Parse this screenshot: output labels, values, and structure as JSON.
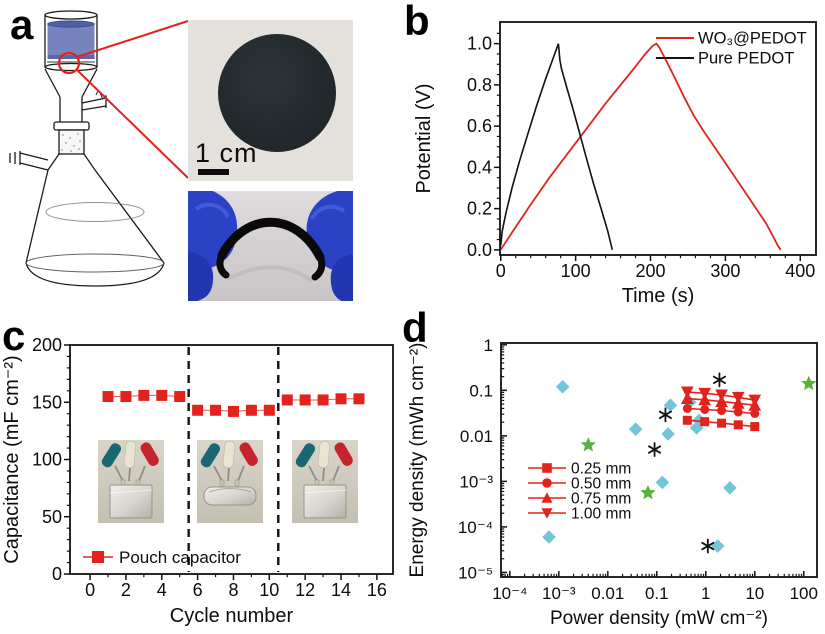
{
  "figure": {
    "background": "#ffffff",
    "panels": {
      "a": {
        "letter": "a"
      },
      "b": {
        "letter": "b"
      },
      "c": {
        "letter": "c"
      },
      "d": {
        "letter": "d"
      }
    }
  },
  "panel_a": {
    "scale_label": "1 cm",
    "drawing": "vacuum-filtration-apparatus",
    "colors": {
      "suspension_liquid": "#7584bd",
      "suspension_liquid_dark": "#505fa5",
      "highlight_red": "#e2231d",
      "glove_blue": "#2b41c6",
      "glove_blue_dark": "#2236b0",
      "film_black": "#23292d"
    }
  },
  "chart_data": [
    {
      "panel": "b",
      "type": "line",
      "xlabel": "Time (s)",
      "ylabel": "Potential (V)",
      "xlim": [
        -1,
        421
      ],
      "ylim": [
        -0.025,
        1.105
      ],
      "xticks": [
        0,
        100,
        200,
        300,
        400
      ],
      "xtick_labels": [
        "0",
        "100",
        "200",
        "300",
        "400"
      ],
      "yticks": [
        0.0,
        0.2,
        0.4,
        0.6,
        0.8,
        1.0
      ],
      "ytick_labels": [
        "0.0",
        "0.2",
        "0.4",
        "0.6",
        "0.8",
        "1.0"
      ],
      "legend": {
        "position": "top-right",
        "entries": [
          {
            "label": "WO₃@PEDOT",
            "color": "#e2231d"
          },
          {
            "label": "Pure PEDOT",
            "color": "#111111"
          }
        ]
      },
      "series": [
        {
          "name": "WO₃@PEDOT",
          "color": "#e2231d",
          "width": 1.8,
          "points": [
            [
              0,
              0.0
            ],
            [
              18,
              0.1
            ],
            [
              40,
              0.22
            ],
            [
              65,
              0.35
            ],
            [
              90,
              0.47
            ],
            [
              115,
              0.59
            ],
            [
              140,
              0.71
            ],
            [
              160,
              0.8
            ],
            [
              178,
              0.88
            ],
            [
              193,
              0.95
            ],
            [
              203,
              0.99
            ],
            [
              208,
              1.0
            ],
            [
              212,
              0.98
            ],
            [
              222,
              0.91
            ],
            [
              233,
              0.83
            ],
            [
              245,
              0.74
            ],
            [
              258,
              0.65
            ],
            [
              272,
              0.57
            ],
            [
              287,
              0.49
            ],
            [
              302,
              0.41
            ],
            [
              317,
              0.33
            ],
            [
              330,
              0.26
            ],
            [
              343,
              0.19
            ],
            [
              354,
              0.13
            ],
            [
              363,
              0.07
            ],
            [
              370,
              0.02
            ],
            [
              374,
              0.0
            ]
          ]
        },
        {
          "name": "Pure PEDOT",
          "color": "#111111",
          "width": 1.6,
          "points": [
            [
              0,
              0.02
            ],
            [
              2,
              0.09
            ],
            [
              7,
              0.18
            ],
            [
              15,
              0.3
            ],
            [
              25,
              0.43
            ],
            [
              36,
              0.56
            ],
            [
              48,
              0.7
            ],
            [
              60,
              0.83
            ],
            [
              70,
              0.93
            ],
            [
              77,
              1.0
            ],
            [
              79,
              0.92
            ],
            [
              81,
              0.88
            ],
            [
              88,
              0.79
            ],
            [
              96,
              0.69
            ],
            [
              105,
              0.57
            ],
            [
              114,
              0.45
            ],
            [
              124,
              0.32
            ],
            [
              134,
              0.2
            ],
            [
              143,
              0.09
            ],
            [
              149,
              0.0
            ]
          ]
        }
      ]
    },
    {
      "panel": "c",
      "type": "scatter-line",
      "xlabel": "Cycle number",
      "ylabel": "Capacitance (mF cm⁻²)",
      "xlim": [
        -1.12,
        16.9
      ],
      "ylim": [
        0,
        200
      ],
      "xticks": [
        0,
        2,
        4,
        6,
        8,
        10,
        12,
        14,
        16
      ],
      "xtick_labels": [
        "0",
        "2",
        "4",
        "6",
        "8",
        "10",
        "12",
        "14",
        "16"
      ],
      "yticks": [
        0,
        50,
        100,
        150,
        200
      ],
      "ytick_labels": [
        "0",
        "50",
        "100",
        "150",
        "200"
      ],
      "dashed_vlines_x": [
        5.5,
        10.5
      ],
      "legend": {
        "position": "bottom-left",
        "entries": [
          {
            "label": "Pouch capacitor",
            "color": "#e2231d",
            "marker": "square"
          }
        ]
      },
      "series": [
        {
          "name": "flat state cycles 1-5",
          "color": "#e2231d",
          "marker": "square",
          "points": [
            [
              1,
              155
            ],
            [
              2,
              155
            ],
            [
              3,
              156
            ],
            [
              4,
              156
            ],
            [
              5,
              155
            ]
          ]
        },
        {
          "name": "folded state cycles 6-10",
          "color": "#e2231d",
          "marker": "square",
          "points": [
            [
              6,
              143
            ],
            [
              7,
              143
            ],
            [
              8,
              142
            ],
            [
              9,
              143
            ],
            [
              10,
              143
            ]
          ]
        },
        {
          "name": "unfolded state cycles 11-15",
          "color": "#e2231d",
          "marker": "square",
          "points": [
            [
              11,
              152
            ],
            [
              12,
              152
            ],
            [
              13,
              152
            ],
            [
              14,
              153
            ],
            [
              15,
              153
            ]
          ]
        }
      ],
      "insets": [
        {
          "state": "flat"
        },
        {
          "state": "folded"
        },
        {
          "state": "flat"
        }
      ]
    },
    {
      "panel": "d",
      "type": "scatter",
      "xscale": "log",
      "yscale": "log",
      "xlabel": "Power density (mW cm⁻²)",
      "ylabel": "Energy density (mWh cm⁻²)",
      "xlim_exp": [
        -4.18,
        2.27
      ],
      "ylim_exp": [
        -5.1,
        0.04
      ],
      "xtick_exp": [
        -4,
        -3,
        -2,
        -1,
        0,
        1,
        2
      ],
      "xtick_labels": [
        "10⁻⁴",
        "10⁻³",
        "0.01",
        "0.1",
        "1",
        "10",
        "100"
      ],
      "ytick_exp": [
        0,
        -1,
        -2,
        -3,
        -4,
        -5
      ],
      "ytick_labels": [
        "1",
        "0.1",
        "0.01",
        "10⁻³",
        "10⁻⁴",
        "10⁻⁵"
      ],
      "legend": {
        "position": "center-left",
        "entries": [
          {
            "label": "0.25 mm",
            "color": "#e2231d",
            "marker": "square"
          },
          {
            "label": "0.50 mm",
            "color": "#e2231d",
            "marker": "circle"
          },
          {
            "label": "0.75 mm",
            "color": "#e2231d",
            "marker": "triangle-up"
          },
          {
            "label": "1.00 mm",
            "color": "#e2231d",
            "marker": "triangle-down"
          }
        ]
      },
      "series": [
        {
          "name": "0.25 mm",
          "color": "#e2231d",
          "marker": "square",
          "points": [
            [
              0.42,
              0.022
            ],
            [
              0.95,
              0.0205
            ],
            [
              2.1,
              0.019
            ],
            [
              4.6,
              0.0175
            ],
            [
              10,
              0.016
            ]
          ]
        },
        {
          "name": "0.50 mm",
          "color": "#e2231d",
          "marker": "circle",
          "points": [
            [
              0.42,
              0.04
            ],
            [
              0.95,
              0.038
            ],
            [
              2.1,
              0.036
            ],
            [
              4.6,
              0.0335
            ],
            [
              10,
              0.031
            ]
          ]
        },
        {
          "name": "0.75 mm",
          "color": "#e2231d",
          "marker": "triangle-up",
          "points": [
            [
              0.42,
              0.066
            ],
            [
              0.95,
              0.062
            ],
            [
              2.1,
              0.057
            ],
            [
              4.6,
              0.052
            ],
            [
              10,
              0.047
            ]
          ]
        },
        {
          "name": "1.00 mm",
          "color": "#e2231d",
          "marker": "triangle-down",
          "points": [
            [
              0.42,
              0.092
            ],
            [
              0.95,
              0.086
            ],
            [
              2.1,
              0.079
            ],
            [
              4.6,
              0.07
            ],
            [
              10,
              0.061
            ]
          ]
        }
      ],
      "scatter": [
        {
          "name": "reference-cyan-diamonds",
          "color": "#72c6d8",
          "marker": "diamond",
          "points": [
            [
              0.0012,
              0.12
            ],
            [
              0.00063,
              6e-05
            ],
            [
              0.037,
              0.014
            ],
            [
              0.13,
              0.00095
            ],
            [
              0.17,
              0.011
            ],
            [
              0.19,
              0.047
            ],
            [
              0.47,
              0.055
            ],
            [
              0.65,
              0.015
            ],
            [
              0.73,
              0.022
            ],
            [
              1.75,
              3.8e-05
            ],
            [
              3.1,
              0.00072
            ]
          ]
        },
        {
          "name": "reference-black-asterisks",
          "color": "#111111",
          "marker": "asterisk",
          "points": [
            [
              0.09,
              0.005
            ],
            [
              0.15,
              0.029
            ],
            [
              1.9,
              0.17
            ],
            [
              1.1,
              3.8e-05
            ]
          ]
        },
        {
          "name": "reference-green-stars",
          "color": "#57b33c",
          "marker": "star",
          "points": [
            [
              0.004,
              0.0063
            ],
            [
              0.066,
              0.00056
            ],
            [
              126,
              0.14
            ]
          ]
        }
      ]
    }
  ]
}
